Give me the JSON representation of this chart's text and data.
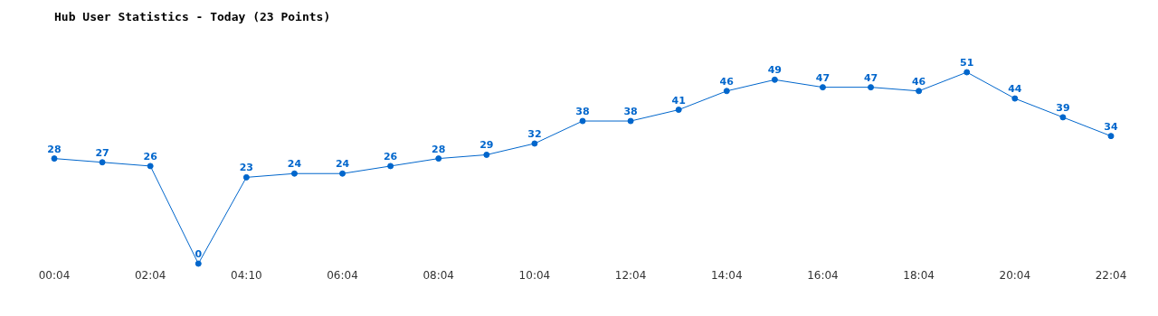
{
  "chart_data": {
    "type": "line",
    "title": "Hub User Statistics - Today (23 Points)",
    "categories": [
      "00:04",
      null,
      "02:04",
      null,
      "04:10",
      null,
      "06:04",
      null,
      "08:04",
      null,
      "10:04",
      null,
      "12:04",
      null,
      "14:04",
      null,
      "16:04",
      null,
      "18:04",
      null,
      "20:04",
      null,
      "22:04"
    ],
    "values": [
      28,
      27,
      26,
      0,
      23,
      24,
      24,
      26,
      28,
      29,
      32,
      38,
      38,
      41,
      46,
      49,
      47,
      47,
      46,
      51,
      44,
      39,
      34
    ],
    "color": "#0066cc",
    "data_labels": true,
    "marker": "circle",
    "tick_labels": "x"
  }
}
